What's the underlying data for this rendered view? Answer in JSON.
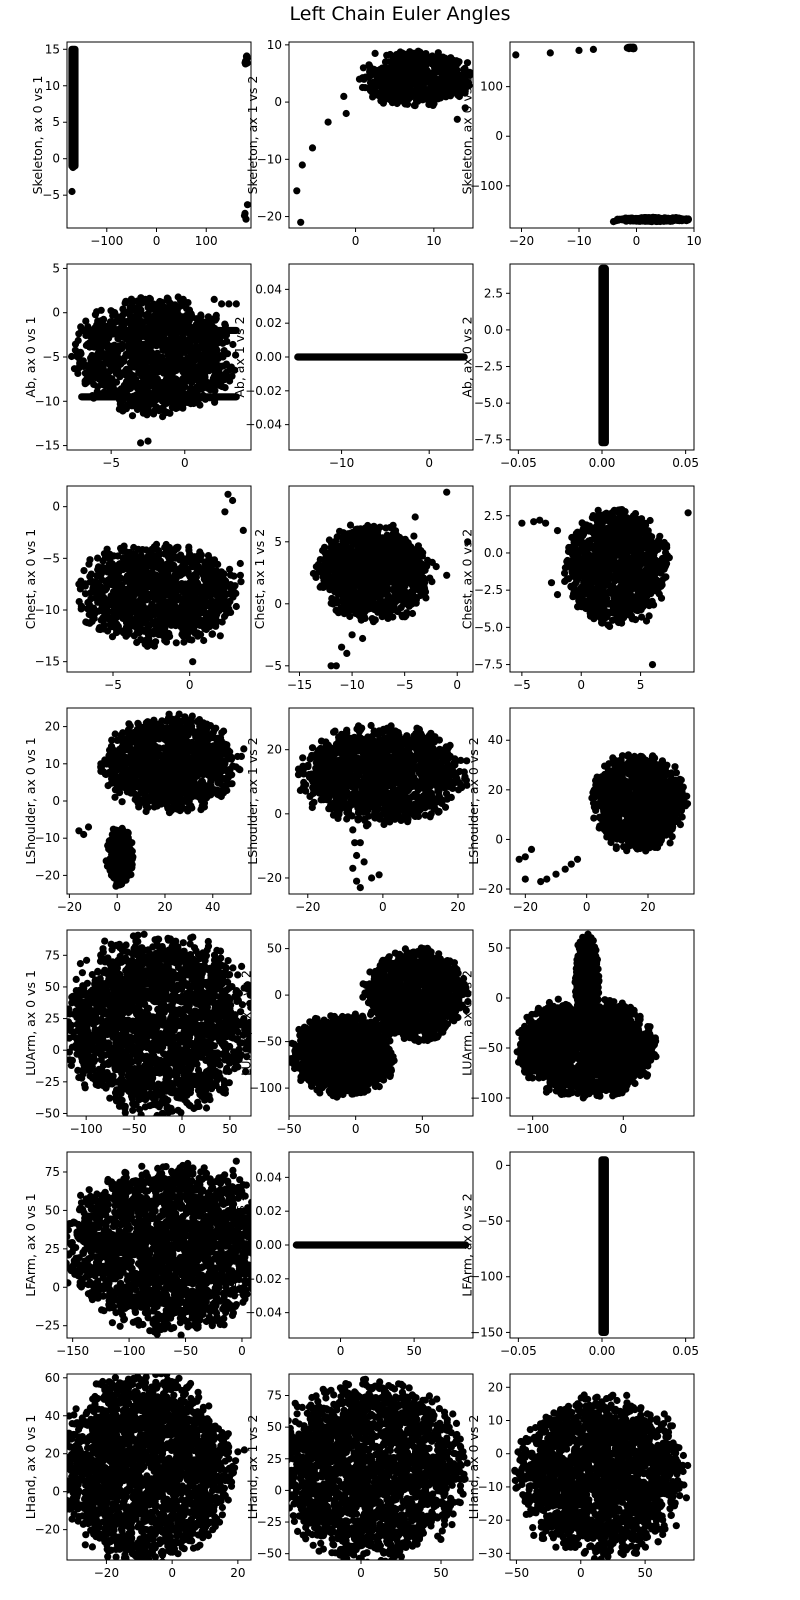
{
  "figure": {
    "title": "Left Chain Euler Angles"
  },
  "chart_data": [
    {
      "type": "scatter",
      "ylabel": "Skeleton, ax 0 vs 1",
      "xlim": [
        -180,
        190
      ],
      "ylim": [
        -9.5,
        16
      ],
      "xticks": [
        -100,
        0,
        100
      ],
      "yticks": [
        -5,
        0,
        5,
        10,
        15
      ],
      "clusters": [
        {
          "kind": "vband",
          "x": -170,
          "y0": -1,
          "y1": 15,
          "w": 6
        },
        {
          "kind": "blob",
          "cx": 180,
          "cy": 13.5,
          "rx": 3,
          "ry": 0.6,
          "n": 12
        }
      ],
      "points": [
        [
          -170,
          -4.5
        ],
        [
          -168,
          -1.2
        ],
        [
          -170,
          -1.0
        ],
        [
          177,
          -7.8
        ],
        [
          180,
          -8.3
        ],
        [
          178,
          -7.5
        ],
        [
          183,
          -6.3
        ],
        [
          181,
          14
        ],
        [
          179,
          13
        ]
      ]
    },
    {
      "type": "scatter",
      "ylabel": "Skeleton, ax 1 vs 2",
      "xlim": [
        -8.5,
        15
      ],
      "ylim": [
        -22,
        10.5
      ],
      "xticks": [
        0,
        10
      ],
      "yticks": [
        -20,
        -10,
        0,
        10
      ],
      "clusters": [
        {
          "kind": "blob",
          "cx": 8,
          "cy": 4,
          "rx": 6.5,
          "ry": 4.5,
          "n": 600
        }
      ],
      "points": [
        [
          -7,
          -21
        ],
        [
          -7.5,
          -15.5
        ],
        [
          -6.8,
          -11
        ],
        [
          -5.5,
          -8
        ],
        [
          -3.5,
          -3.5
        ],
        [
          -1.5,
          1
        ],
        [
          -1.2,
          -2
        ],
        [
          0.5,
          4
        ],
        [
          1,
          6
        ],
        [
          2.5,
          8.5
        ],
        [
          13,
          -3
        ],
        [
          14,
          -1
        ]
      ]
    },
    {
      "type": "scatter",
      "ylabel": "Skeleton, ax 0 vs 2",
      "xlim": [
        -22,
        10
      ],
      "ylim": [
        -185,
        190
      ],
      "xticks": [
        -20,
        -10,
        0,
        10
      ],
      "yticks": [
        -100,
        0,
        100
      ],
      "clusters": [
        {
          "kind": "blob",
          "cx": 3,
          "cy": -168,
          "rx": 6,
          "ry": 4,
          "n": 300
        },
        {
          "kind": "blob",
          "cx": -1,
          "cy": 178,
          "rx": 0.7,
          "ry": 2,
          "n": 20
        }
      ],
      "points": [
        [
          -21,
          164
        ],
        [
          -15,
          168
        ],
        [
          -10,
          173
        ],
        [
          -7.5,
          175
        ],
        [
          -4,
          -172
        ],
        [
          -3.5,
          -170
        ],
        [
          9,
          -168
        ],
        [
          8,
          -167
        ]
      ]
    },
    {
      "type": "scatter",
      "ylabel": "Ab, ax 0 vs 1",
      "xlim": [
        -8,
        4.5
      ],
      "ylim": [
        -15.5,
        5.5
      ],
      "xticks": [
        -5,
        0
      ],
      "yticks": [
        -15,
        -10,
        -5,
        0,
        5
      ],
      "clusters": [
        {
          "kind": "blob",
          "cx": -2,
          "cy": -5,
          "rx": 5,
          "ry": 6,
          "n": 1300
        },
        {
          "kind": "hband",
          "x0": -7,
          "x1": 3.5,
          "y": -2,
          "h": 0.6
        },
        {
          "kind": "hband",
          "x0": -7,
          "x1": 3.5,
          "y": -9.5,
          "h": 0.7
        }
      ],
      "points": [
        [
          -3,
          -14.7
        ],
        [
          -2.5,
          -14.5
        ],
        [
          2.5,
          1
        ],
        [
          3,
          1
        ],
        [
          3.5,
          1
        ],
        [
          2,
          1.5
        ]
      ]
    },
    {
      "type": "scatter",
      "ylabel": "Ab, ax 1 vs 2",
      "xlim": [
        -16,
        5
      ],
      "ylim": [
        -0.055,
        0.055
      ],
      "xticks": [
        -10,
        0
      ],
      "yticks": [
        -0.04,
        -0.02,
        0,
        0.02,
        0.04
      ],
      "clusters": [
        {
          "kind": "hband",
          "x0": -15,
          "x1": 4,
          "y": 0,
          "h": 0.0015
        }
      ],
      "points": []
    },
    {
      "type": "scatter",
      "ylabel": "Ab, ax 0 vs 2",
      "xlim": [
        -0.055,
        0.055
      ],
      "ylim": [
        -8.2,
        4.5
      ],
      "xticks": [
        -0.05,
        0,
        0.05
      ],
      "yticks": [
        -7.5,
        -5,
        -2.5,
        0,
        2.5
      ],
      "clusters": [
        {
          "kind": "vband",
          "x": 0,
          "y0": -7.7,
          "y1": 4.2,
          "w": 0.002
        }
      ],
      "points": []
    },
    {
      "type": "scatter",
      "ylabel": "Chest, ax 0 vs 1",
      "xlim": [
        -8,
        4
      ],
      "ylim": [
        -16,
        2
      ],
      "xticks": [
        -5,
        0
      ],
      "yticks": [
        -15,
        -10,
        -5,
        0
      ],
      "clusters": [
        {
          "kind": "blob",
          "cx": -2,
          "cy": -8.5,
          "rx": 4.8,
          "ry": 4.5,
          "n": 1100
        }
      ],
      "points": [
        [
          2.5,
          1.2
        ],
        [
          2.8,
          0.6
        ],
        [
          2.3,
          -0.5
        ],
        [
          3.5,
          -2.3
        ],
        [
          3.3,
          -5.5
        ],
        [
          2,
          -12.5
        ],
        [
          0.2,
          -15
        ]
      ]
    },
    {
      "type": "scatter",
      "ylabel": "Chest, ax 1 vs 2",
      "xlim": [
        -16,
        1.5
      ],
      "ylim": [
        -5.5,
        9.5
      ],
      "xticks": [
        -15,
        -10,
        -5,
        0
      ],
      "yticks": [
        -5,
        0,
        5
      ],
      "clusters": [
        {
          "kind": "blob",
          "cx": -8,
          "cy": 2.5,
          "rx": 5,
          "ry": 3.5,
          "n": 1100
        }
      ],
      "points": [
        [
          -1,
          9
        ],
        [
          -4,
          7
        ],
        [
          1,
          5
        ],
        [
          -1,
          2.3
        ],
        [
          -2,
          3
        ],
        [
          -11,
          -3.5
        ],
        [
          -12,
          -5
        ],
        [
          -11.5,
          -5
        ],
        [
          -10,
          -2.5
        ],
        [
          -9,
          -2.8
        ],
        [
          -10.5,
          -4
        ]
      ]
    },
    {
      "type": "scatter",
      "ylabel": "Chest, ax 0 vs 2",
      "xlim": [
        -6,
        9.5
      ],
      "ylim": [
        -8,
        4.5
      ],
      "xticks": [
        -5,
        0,
        5
      ],
      "yticks": [
        -7.5,
        -5,
        -2.5,
        0,
        2.5
      ],
      "clusters": [
        {
          "kind": "blob",
          "cx": 3,
          "cy": -1,
          "rx": 4,
          "ry": 3.5,
          "n": 1100
        }
      ],
      "points": [
        [
          -5,
          2
        ],
        [
          -4,
          2.1
        ],
        [
          -3.5,
          2.2
        ],
        [
          -3,
          2
        ],
        [
          -2,
          1.5
        ],
        [
          -2.5,
          -2
        ],
        [
          -2,
          -2.8
        ],
        [
          9,
          2.7
        ],
        [
          7,
          -0.5
        ],
        [
          6,
          -7.5
        ]
      ]
    },
    {
      "type": "scatter",
      "ylabel": "LShoulder, ax 0 vs 1",
      "xlim": [
        -21,
        56
      ],
      "ylim": [
        -25,
        25
      ],
      "xticks": [
        -20,
        0,
        20,
        40
      ],
      "yticks": [
        -20,
        -10,
        0,
        10,
        20
      ],
      "clusters": [
        {
          "kind": "blob",
          "cx": 22,
          "cy": 10,
          "rx": 26,
          "ry": 12,
          "n": 1200
        },
        {
          "kind": "blob",
          "cx": 1,
          "cy": -15,
          "rx": 5,
          "ry": 7,
          "n": 300
        }
      ],
      "points": [
        [
          -16,
          -8
        ],
        [
          -14,
          -9
        ],
        [
          -12,
          -7
        ],
        [
          52,
          12
        ],
        [
          53,
          14
        ]
      ]
    },
    {
      "type": "scatter",
      "ylabel": "LShoulder, ax 1 vs 2",
      "xlim": [
        -25,
        24
      ],
      "ylim": [
        -25,
        33
      ],
      "xticks": [
        -20,
        0,
        20
      ],
      "yticks": [
        -20,
        0,
        20
      ],
      "clusters": [
        {
          "kind": "blob",
          "cx": 0,
          "cy": 12,
          "rx": 20,
          "ry": 14,
          "n": 1400
        }
      ],
      "points": [
        [
          -8,
          -5
        ],
        [
          -7.5,
          -9
        ],
        [
          -7,
          -13
        ],
        [
          -8,
          -17
        ],
        [
          -7,
          -21
        ],
        [
          -6,
          -23
        ],
        [
          -3,
          -20
        ],
        [
          -1,
          -19
        ],
        [
          -5,
          -15
        ],
        [
          -6,
          -9
        ]
      ]
    },
    {
      "type": "scatter",
      "ylabel": "LShoulder, ax 0 vs 2",
      "xlim": [
        -25,
        35
      ],
      "ylim": [
        -22,
        53
      ],
      "xticks": [
        -20,
        0,
        20
      ],
      "yticks": [
        -20,
        0,
        20,
        40
      ],
      "clusters": [
        {
          "kind": "blob",
          "cx": 17,
          "cy": 15,
          "rx": 14,
          "ry": 18,
          "n": 1100
        }
      ],
      "points": [
        [
          -22,
          -8
        ],
        [
          -20,
          -7
        ],
        [
          -18,
          -4
        ],
        [
          -15,
          -17
        ],
        [
          -13,
          -16
        ],
        [
          -10,
          -14
        ],
        [
          -7,
          -12
        ],
        [
          -5,
          -10
        ],
        [
          -3,
          -8
        ],
        [
          -20,
          -16
        ]
      ]
    },
    {
      "type": "scatter",
      "ylabel": "LUArm, ax 0 vs 1",
      "xlim": [
        -120,
        72
      ],
      "ylim": [
        -52,
        95
      ],
      "xticks": [
        -100,
        -50,
        0,
        50
      ],
      "yticks": [
        -50,
        -25,
        0,
        25,
        50,
        75
      ],
      "clusters": [
        {
          "kind": "blob",
          "cx": -25,
          "cy": 20,
          "rx": 90,
          "ry": 65,
          "n": 2200
        }
      ],
      "points": []
    },
    {
      "type": "scatter",
      "ylabel": "LUArm, ax 1 vs 2",
      "xlim": [
        -50,
        88
      ],
      "ylim": [
        -130,
        70
      ],
      "xticks": [
        -50,
        0,
        50
      ],
      "yticks": [
        -100,
        -50,
        0,
        50
      ],
      "clusters": [
        {
          "kind": "blob",
          "cx": -10,
          "cy": -65,
          "rx": 35,
          "ry": 40,
          "n": 1400
        },
        {
          "kind": "blob",
          "cx": 45,
          "cy": 0,
          "rx": 35,
          "ry": 45,
          "n": 1200
        }
      ],
      "points": []
    },
    {
      "type": "scatter",
      "ylabel": "LUArm, ax 0 vs 2",
      "xlim": [
        -125,
        78
      ],
      "ylim": [
        -118,
        68
      ],
      "xticks": [
        -100,
        0
      ],
      "yticks": [
        -100,
        -50,
        0,
        50
      ],
      "clusters": [
        {
          "kind": "blob",
          "cx": -40,
          "cy": -50,
          "rx": 70,
          "ry": 45,
          "n": 1800
        },
        {
          "kind": "blob",
          "cx": -40,
          "cy": 20,
          "rx": 12,
          "ry": 40,
          "n": 500
        }
      ],
      "points": []
    },
    {
      "type": "scatter",
      "ylabel": "LFArm, ax 0 vs 1",
      "xlim": [
        -155,
        8
      ],
      "ylim": [
        -33,
        88
      ],
      "xticks": [
        -150,
        -100,
        -50,
        0
      ],
      "yticks": [
        -25,
        0,
        25,
        50,
        75
      ],
      "clusters": [
        {
          "kind": "blob",
          "cx": -65,
          "cy": 25,
          "rx": 85,
          "ry": 50,
          "n": 2200
        }
      ],
      "points": [
        [
          -5,
          82
        ],
        [
          -8,
          76
        ],
        [
          -2,
          70
        ]
      ]
    },
    {
      "type": "scatter",
      "ylabel": "LFArm, ax 1 vs 2",
      "xlim": [
        -35,
        90
      ],
      "ylim": [
        -0.055,
        0.055
      ],
      "xticks": [
        0,
        50
      ],
      "yticks": [
        -0.04,
        -0.02,
        0,
        0.02,
        0.04
      ],
      "clusters": [
        {
          "kind": "hband",
          "x0": -30,
          "x1": 85,
          "y": 0,
          "h": 0.0015
        }
      ],
      "points": []
    },
    {
      "type": "scatter",
      "ylabel": "LFArm, ax 0 vs 2",
      "xlim": [
        -0.055,
        0.055
      ],
      "ylim": [
        -155,
        12
      ],
      "xticks": [
        -0.05,
        0,
        0.05
      ],
      "yticks": [
        -150,
        -100,
        -50,
        0
      ],
      "clusters": [
        {
          "kind": "vband",
          "x": 0,
          "y0": -150,
          "y1": 5,
          "w": 0.002
        }
      ],
      "points": []
    },
    {
      "type": "scatter",
      "ylabel": "LHand, ax 0 vs 1",
      "xlim": [
        -32,
        24
      ],
      "ylim": [
        -36,
        62
      ],
      "xticks": [
        -20,
        0,
        20
      ],
      "yticks": [
        -20,
        0,
        20,
        40,
        60
      ],
      "clusters": [
        {
          "kind": "blob",
          "cx": -8,
          "cy": 12,
          "rx": 24,
          "ry": 45,
          "n": 2200
        }
      ],
      "points": [
        [
          20,
          21
        ],
        [
          22,
          22
        ]
      ]
    },
    {
      "type": "scatter",
      "ylabel": "LHand, ax 1 vs 2",
      "xlim": [
        -45,
        70
      ],
      "ylim": [
        -55,
        92
      ],
      "xticks": [
        0,
        50
      ],
      "yticks": [
        -50,
        -25,
        0,
        25,
        50,
        75
      ],
      "clusters": [
        {
          "kind": "blob",
          "cx": 5,
          "cy": 15,
          "rx": 55,
          "ry": 65,
          "n": 2200
        }
      ],
      "points": []
    },
    {
      "type": "scatter",
      "ylabel": "LHand, ax 0 vs 2",
      "xlim": [
        -55,
        88
      ],
      "ylim": [
        -32,
        24
      ],
      "xticks": [
        -50,
        0,
        50
      ],
      "yticks": [
        -30,
        -20,
        -10,
        0,
        10,
        20
      ],
      "clusters": [
        {
          "kind": "blob",
          "cx": 15,
          "cy": -7,
          "rx": 60,
          "ry": 22,
          "n": 2000
        }
      ],
      "points": []
    }
  ],
  "colors": {
    "marker": "#000000",
    "axes": "#000000",
    "background": "#ffffff"
  }
}
